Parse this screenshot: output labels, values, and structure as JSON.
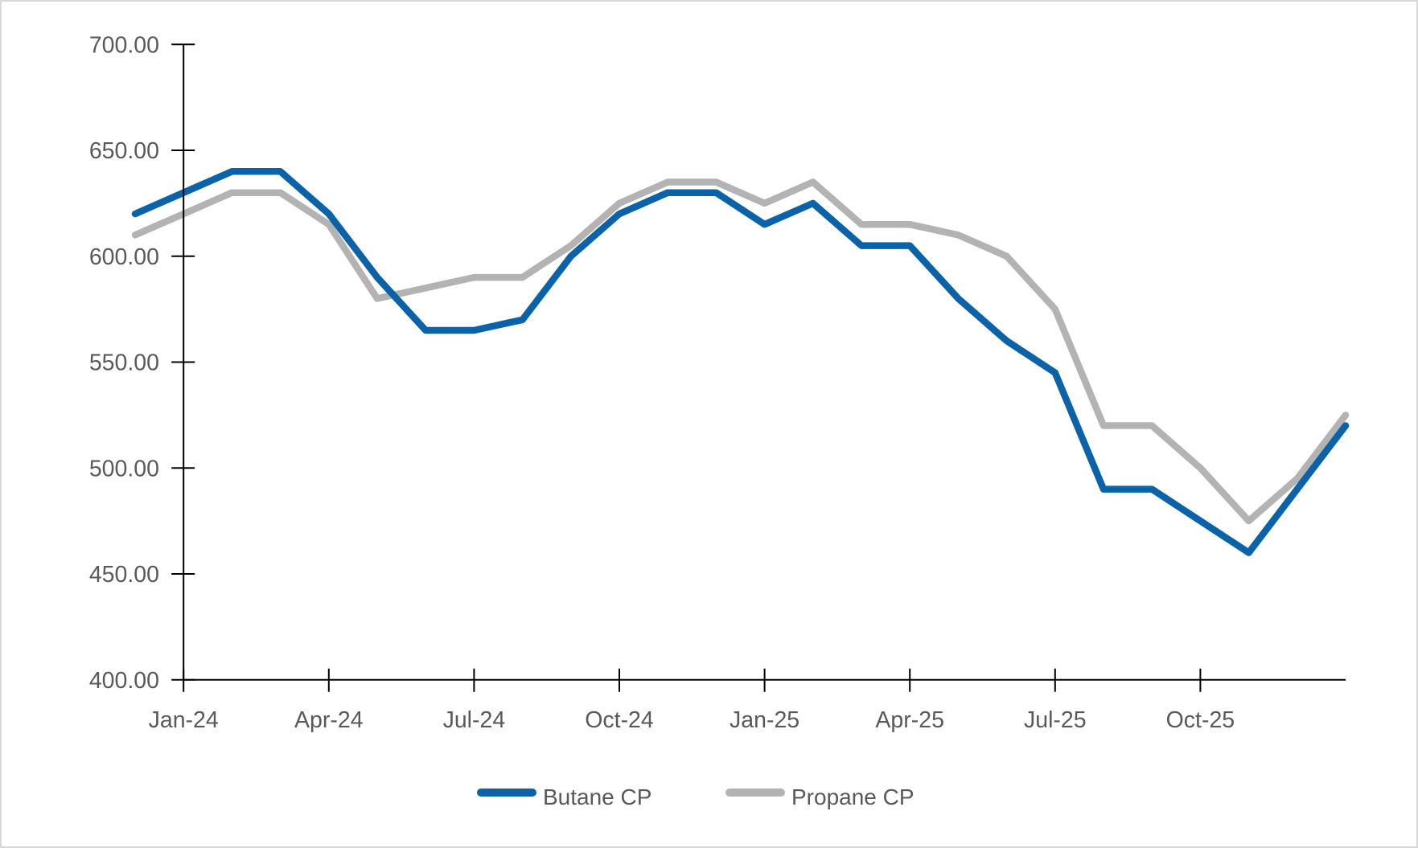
{
  "chart_data": {
    "type": "line",
    "title": "",
    "categories": [
      "Dec-23",
      "Jan-24",
      "Feb-24",
      "Mar-24",
      "Apr-24",
      "May-24",
      "Jun-24",
      "Jul-24",
      "Aug-24",
      "Sep-24",
      "Oct-24",
      "Nov-24",
      "Dec-24",
      "Jan-25",
      "Feb-25",
      "Mar-25",
      "Apr-25",
      "May-25",
      "Jun-25",
      "Jul-25",
      "Aug-25",
      "Sep-25",
      "Oct-25",
      "Nov-25",
      "Dec-25",
      "Jan-26"
    ],
    "series": [
      {
        "name": "Butane CP",
        "color": "#0a63a9",
        "values": [
          620,
          630,
          640,
          640,
          620,
          590,
          565,
          565,
          570,
          600,
          620,
          630,
          630,
          615,
          625,
          605,
          605,
          580,
          560,
          545,
          490,
          490,
          475,
          460,
          490,
          520
        ]
      },
      {
        "name": "Propane CP",
        "color": "#b3b3b3",
        "values": [
          610,
          620,
          630,
          630,
          615,
          580,
          585,
          590,
          590,
          605,
          625,
          635,
          635,
          625,
          635,
          615,
          615,
          610,
          600,
          575,
          520,
          520,
          500,
          475,
          495,
          525
        ]
      }
    ],
    "ylim": [
      400,
      700
    ],
    "ytick_step": 50,
    "y_tick_labels": [
      "400.00",
      "450.00",
      "500.00",
      "550.00",
      "600.00",
      "650.00",
      "700.00"
    ],
    "x_tick_labels": [
      "Jan-24",
      "Apr-24",
      "Jul-24",
      "Oct-24",
      "Jan-25",
      "Apr-25",
      "Jul-25",
      "Oct-25"
    ],
    "x_tick_category_indices": [
      1,
      4,
      7,
      10,
      13,
      16,
      19,
      22
    ],
    "xlabel": "",
    "ylabel": "",
    "grid": false,
    "legend_position": "bottom",
    "axis_color": "#000000",
    "label_color": "#595959"
  }
}
